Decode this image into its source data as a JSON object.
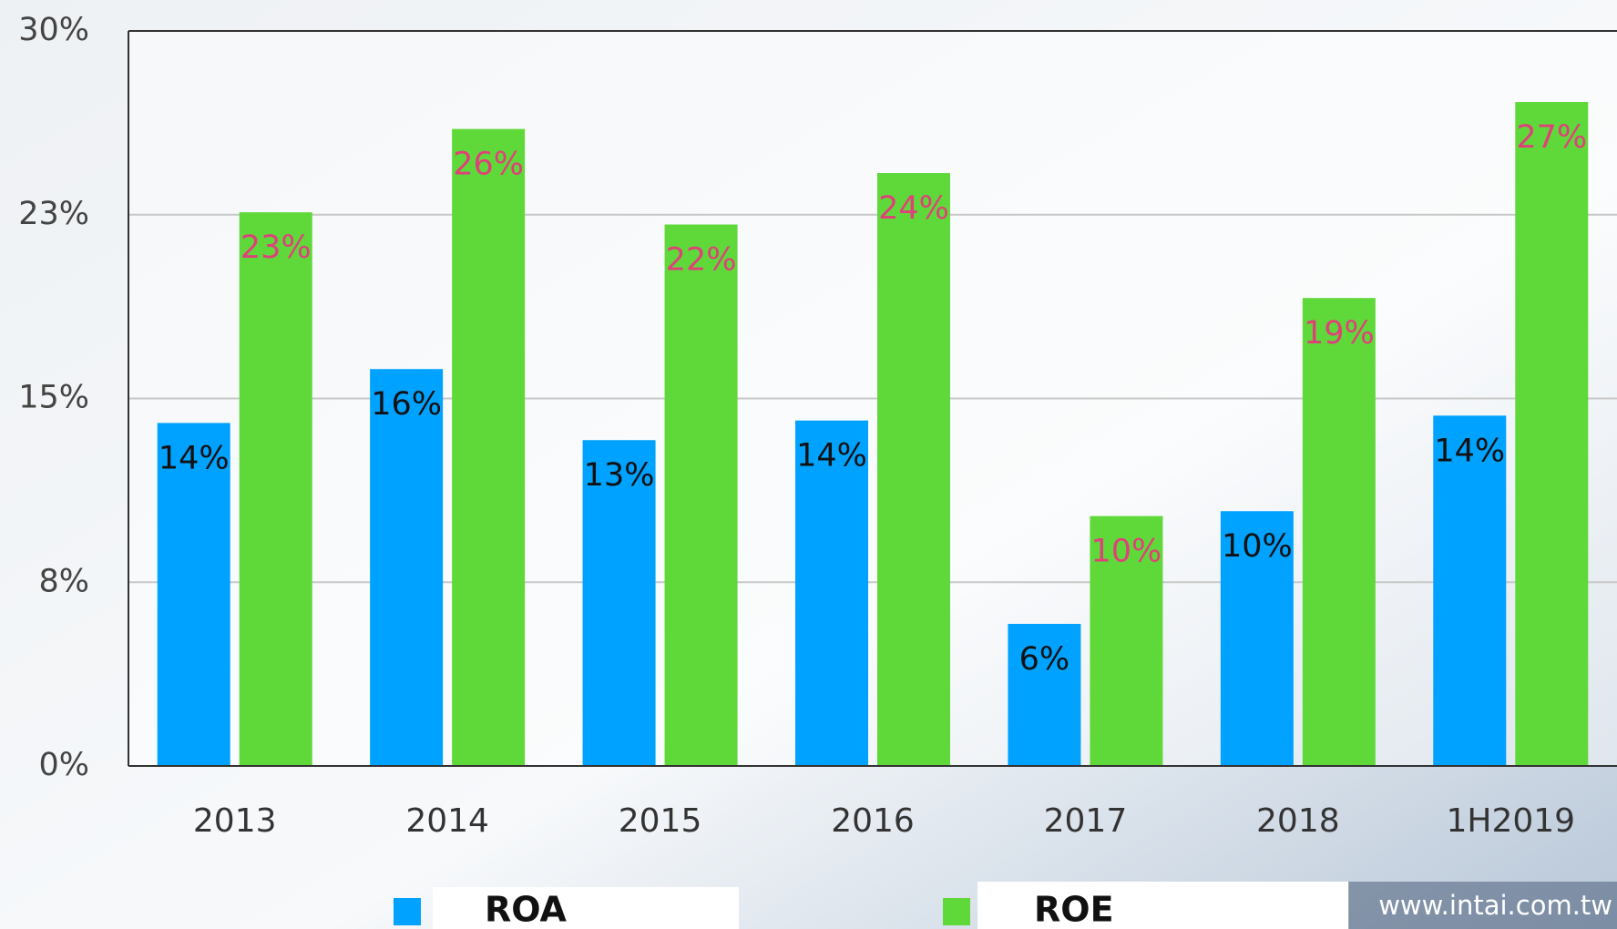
{
  "chart_data": {
    "type": "bar",
    "categories": [
      "2013",
      "2014",
      "2015",
      "2016",
      "2017",
      "2018",
      "1H2019"
    ],
    "series": [
      {
        "name": "ROA",
        "color": "#00a2ff",
        "label_color": "#111111",
        "values": [
          14.0,
          16.2,
          13.3,
          14.1,
          5.8,
          10.4,
          14.3
        ],
        "value_labels": [
          "14%",
          "16%",
          "13%",
          "14%",
          "6%",
          "10%",
          "14%"
        ]
      },
      {
        "name": "ROE",
        "color": "#5fd93a",
        "label_color": "#e0407a",
        "values": [
          22.6,
          26.0,
          22.1,
          24.2,
          10.2,
          19.1,
          27.1
        ],
        "value_labels": [
          "23%",
          "26%",
          "22%",
          "24%",
          "10%",
          "19%",
          "27%"
        ]
      }
    ],
    "ylim": [
      0,
      30
    ],
    "yticks": [
      {
        "value": 0,
        "label": "0%"
      },
      {
        "value": 7.5,
        "label": "8%"
      },
      {
        "value": 15,
        "label": "15%"
      },
      {
        "value": 22.5,
        "label": "23%"
      },
      {
        "value": 30,
        "label": "30%"
      }
    ],
    "grid": true,
    "footer": "www.intai.com.tw"
  }
}
